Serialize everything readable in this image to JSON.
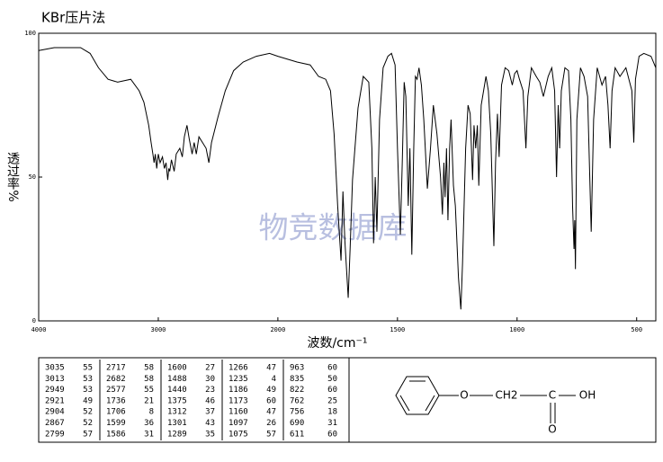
{
  "chart_data": {
    "type": "line",
    "title": "KBr压片法",
    "ylabel": "透过率%",
    "xlabel": "波数/cm⁻¹",
    "watermark": "物竞数据库",
    "xlim": [
      4000,
      420
    ],
    "ylim": [
      0,
      100
    ],
    "x_scale_change": 2000,
    "x_scale_ratio": 2,
    "xticks": [
      4000,
      3000,
      2000,
      1500,
      1000,
      500
    ],
    "yticks": [
      0,
      50,
      100
    ],
    "color": "#000000",
    "x": [
      4000,
      3870,
      3650,
      3570,
      3500,
      3420,
      3340,
      3230,
      3160,
      3120,
      3080,
      3060,
      3045,
      3035,
      3025,
      3013,
      3000,
      2985,
      2965,
      2949,
      2935,
      2921,
      2912,
      2904,
      2890,
      2867,
      2850,
      2820,
      2799,
      2782,
      2760,
      2740,
      2717,
      2700,
      2682,
      2660,
      2630,
      2600,
      2577,
      2555,
      2500,
      2440,
      2370,
      2290,
      2180,
      2070,
      2000,
      1920,
      1865,
      1830,
      1800,
      1780,
      1765,
      1750,
      1736,
      1728,
      1720,
      1706,
      1698,
      1688,
      1665,
      1643,
      1620,
      1607,
      1600,
      1593,
      1586,
      1575,
      1560,
      1540,
      1525,
      1510,
      1500,
      1488,
      1480,
      1472,
      1465,
      1455,
      1448,
      1440,
      1432,
      1425,
      1418,
      1410,
      1400,
      1390,
      1375,
      1362,
      1350,
      1335,
      1320,
      1312,
      1306,
      1301,
      1295,
      1289,
      1282,
      1276,
      1266,
      1258,
      1245,
      1235,
      1228,
      1215,
      1205,
      1196,
      1186,
      1180,
      1173,
      1166,
      1160,
      1150,
      1140,
      1130,
      1120,
      1110,
      1097,
      1090,
      1082,
      1075,
      1065,
      1050,
      1035,
      1020,
      1010,
      1000,
      990,
      975,
      963,
      955,
      940,
      920,
      905,
      890,
      870,
      855,
      843,
      835,
      828,
      822,
      815,
      800,
      785,
      775,
      768,
      762,
      759,
      756,
      750,
      735,
      720,
      705,
      690,
      680,
      665,
      645,
      630,
      620,
      611,
      603,
      590,
      570,
      545,
      520,
      512,
      505,
      490,
      470,
      440,
      420
    ],
    "values": [
      94,
      95,
      95,
      93,
      88,
      84,
      83,
      84,
      80,
      76,
      68,
      62,
      58,
      55,
      58,
      53,
      58,
      55,
      57,
      53,
      55,
      49,
      53,
      52,
      56,
      52,
      58,
      60,
      57,
      64,
      68,
      63,
      58,
      62,
      58,
      64,
      62,
      60,
      55,
      62,
      71,
      80,
      87,
      90,
      92,
      93,
      92,
      90,
      89,
      85,
      84,
      80,
      65,
      40,
      21,
      45,
      28,
      8,
      25,
      49,
      74,
      85,
      83,
      60,
      27,
      50,
      31,
      70,
      88,
      92,
      93,
      89,
      60,
      30,
      55,
      83,
      78,
      40,
      60,
      23,
      60,
      85,
      84,
      88,
      82,
      70,
      46,
      60,
      75,
      65,
      50,
      37,
      55,
      43,
      60,
      35,
      60,
      70,
      47,
      40,
      15,
      4,
      20,
      60,
      75,
      72,
      49,
      68,
      60,
      68,
      47,
      75,
      80,
      85,
      80,
      65,
      26,
      55,
      72,
      57,
      82,
      88,
      87,
      82,
      86,
      87,
      84,
      80,
      60,
      78,
      88,
      85,
      83,
      78,
      85,
      88,
      80,
      50,
      75,
      60,
      80,
      88,
      87,
      70,
      40,
      25,
      35,
      18,
      70,
      88,
      85,
      78,
      31,
      70,
      88,
      82,
      85,
      75,
      60,
      80,
      88,
      85,
      88,
      80,
      62,
      84,
      92,
      93,
      92,
      88
    ]
  },
  "peak_table": [
    [
      [
        3035,
        55
      ],
      [
        3013,
        53
      ],
      [
        2949,
        53
      ],
      [
        2921,
        49
      ],
      [
        2904,
        52
      ],
      [
        2867,
        52
      ],
      [
        2799,
        57
      ]
    ],
    [
      [
        2717,
        58
      ],
      [
        2682,
        58
      ],
      [
        2577,
        55
      ],
      [
        1736,
        21
      ],
      [
        1706,
        8
      ],
      [
        1599,
        36
      ],
      [
        1586,
        31
      ]
    ],
    [
      [
        1600,
        27
      ],
      [
        1488,
        30
      ],
      [
        1440,
        23
      ],
      [
        1375,
        46
      ],
      [
        1312,
        37
      ],
      [
        1301,
        43
      ],
      [
        1289,
        35
      ]
    ],
    [
      [
        1266,
        47
      ],
      [
        1235,
        4
      ],
      [
        1186,
        49
      ],
      [
        1173,
        60
      ],
      [
        1160,
        47
      ],
      [
        1097,
        26
      ],
      [
        1075,
        57
      ]
    ],
    [
      [
        963,
        60
      ],
      [
        835,
        50
      ],
      [
        822,
        60
      ],
      [
        762,
        25
      ],
      [
        756,
        18
      ],
      [
        690,
        31
      ],
      [
        611,
        60
      ]
    ]
  ],
  "structure": {
    "ether_o": "O",
    "ch2": "CH2",
    "carbon": "C",
    "hydroxyl": "OH",
    "carbonyl_o": "O"
  }
}
